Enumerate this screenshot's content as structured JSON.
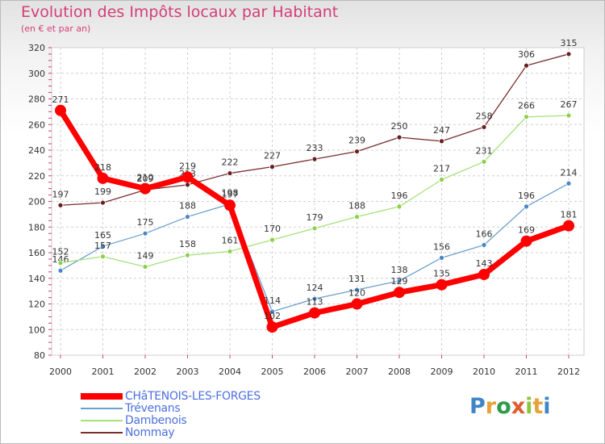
{
  "title": "Evolution des Impôts locaux par Habitant",
  "subtitle": "(en € et par an)",
  "logo": {
    "letters": [
      "P",
      "r",
      "o",
      "x",
      "i",
      "t",
      "i"
    ],
    "colors": [
      "#3f86c9",
      "#e8a23a",
      "#2f9a4b",
      "#e05c2a",
      "#8cc63f",
      "#e8a23a",
      "#3f86c9"
    ]
  },
  "chart_data": {
    "type": "line",
    "title": "Evolution des Impôts locaux par Habitant",
    "ylabel": "(en € et par an)",
    "xlabel": "",
    "categories": [
      "2000",
      "2001",
      "2002",
      "2003",
      "2004",
      "2005",
      "2006",
      "2007",
      "2008",
      "2009",
      "2010",
      "2011",
      "2012"
    ],
    "ylim": [
      80,
      320
    ],
    "yticks": [
      80,
      100,
      120,
      140,
      160,
      180,
      200,
      220,
      240,
      260,
      280,
      300,
      320
    ],
    "grid": true,
    "legend_position": "bottom-left",
    "series": [
      {
        "name": "CHâTENOIS-LES-FORGES",
        "color": "#ff0000",
        "marker": "#ff0000",
        "emphasis": true,
        "values": [
          271,
          218,
          210,
          219,
          197,
          102,
          113,
          120,
          129,
          135,
          143,
          169,
          181
        ],
        "labels": [
          "271",
          "218",
          "210",
          "219",
          "197",
          "102",
          "113",
          "120",
          "129",
          "135",
          "143",
          "169",
          "181"
        ]
      },
      {
        "name": "Trévenans",
        "color": "#6b9fcf",
        "marker": "#4a86c5",
        "emphasis": false,
        "values": [
          146,
          165,
          175,
          188,
          198,
          114,
          124,
          131,
          138,
          156,
          166,
          196,
          214
        ],
        "labels": [
          "146",
          "165",
          "175",
          "188",
          "198",
          "114",
          "124",
          "131",
          "138",
          "156",
          "166",
          "196",
          "214"
        ]
      },
      {
        "name": "Dambenois",
        "color": "#a8e07a",
        "marker": "#8cd148",
        "emphasis": false,
        "values": [
          152,
          157,
          149,
          158,
          161,
          170,
          179,
          188,
          196,
          217,
          231,
          266,
          267
        ],
        "labels": [
          "152",
          "157",
          "149",
          "158",
          "161",
          "170",
          "179",
          "188",
          "196",
          "217",
          "231",
          "266",
          "267"
        ]
      },
      {
        "name": "Nommay",
        "color": "#7a2e2e",
        "marker": "#6a1f1f",
        "emphasis": false,
        "values": [
          197,
          199,
          209,
          213,
          222,
          227,
          233,
          239,
          250,
          247,
          258,
          306,
          315
        ],
        "labels": [
          "197",
          "199",
          "209",
          "213",
          "222",
          "227",
          "233",
          "239",
          "250",
          "247",
          "258",
          "306",
          "315"
        ]
      }
    ]
  }
}
